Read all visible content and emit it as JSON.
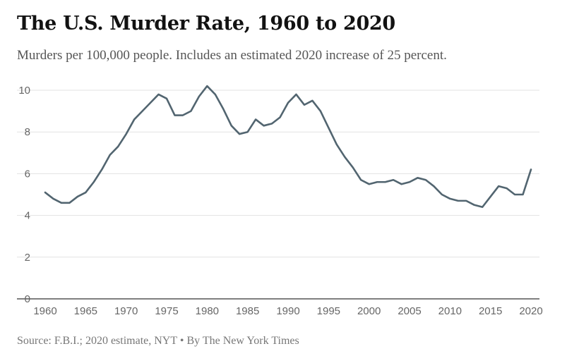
{
  "header": {
    "title": "The U.S. Murder Rate, 1960 to 2020",
    "subtitle": "Murders per 100,000 people. Includes an estimated 2020 increase of 25 percent."
  },
  "footer": {
    "source": "Source: F.B.I.; 2020 estimate, NYT • By The New York Times"
  },
  "colors": {
    "line": "#526570",
    "grid": "#e2e2e2",
    "axis": "#333333"
  },
  "chart_data": {
    "type": "line",
    "title": "The U.S. Murder Rate, 1960 to 2020",
    "subtitle": "Murders per 100,000 people. Includes an estimated 2020 increase of 25 percent.",
    "xlabel": "",
    "ylabel": "",
    "xlim": [
      1960,
      2020
    ],
    "ylim": [
      0,
      10.5
    ],
    "x_ticks": [
      1960,
      1965,
      1970,
      1975,
      1980,
      1985,
      1990,
      1995,
      2000,
      2005,
      2010,
      2015,
      2020
    ],
    "y_ticks": [
      0,
      2,
      4,
      6,
      8,
      10
    ],
    "grid": true,
    "legend": "none",
    "series": [
      {
        "x": [
          1960,
          1961,
          1962,
          1963,
          1964,
          1965,
          1966,
          1967,
          1968,
          1969,
          1970,
          1971,
          1972,
          1973,
          1974,
          1975,
          1976,
          1977,
          1978,
          1979,
          1980,
          1981,
          1982,
          1983,
          1984,
          1985,
          1986,
          1987,
          1988,
          1989,
          1990,
          1991,
          1992,
          1993,
          1994,
          1995,
          1996,
          1997,
          1998,
          1999,
          2000,
          2001,
          2002,
          2003,
          2004,
          2005,
          2006,
          2007,
          2008,
          2009,
          2010,
          2011,
          2012,
          2013,
          2014,
          2015,
          2016,
          2017,
          2018,
          2019,
          2020
        ],
        "values": [
          5.1,
          4.8,
          4.6,
          4.6,
          4.9,
          5.1,
          5.6,
          6.2,
          6.9,
          7.3,
          7.9,
          8.6,
          9.0,
          9.4,
          9.8,
          9.6,
          8.8,
          8.8,
          9.0,
          9.7,
          10.2,
          9.8,
          9.1,
          8.3,
          7.9,
          8.0,
          8.6,
          8.3,
          8.4,
          8.7,
          9.4,
          9.8,
          9.3,
          9.5,
          9.0,
          8.2,
          7.4,
          6.8,
          6.3,
          5.7,
          5.5,
          5.6,
          5.6,
          5.7,
          5.5,
          5.6,
          5.8,
          5.7,
          5.4,
          5.0,
          4.8,
          4.7,
          4.7,
          4.5,
          4.4,
          4.9,
          5.4,
          5.3,
          5.0,
          5.0,
          6.2
        ]
      }
    ]
  }
}
